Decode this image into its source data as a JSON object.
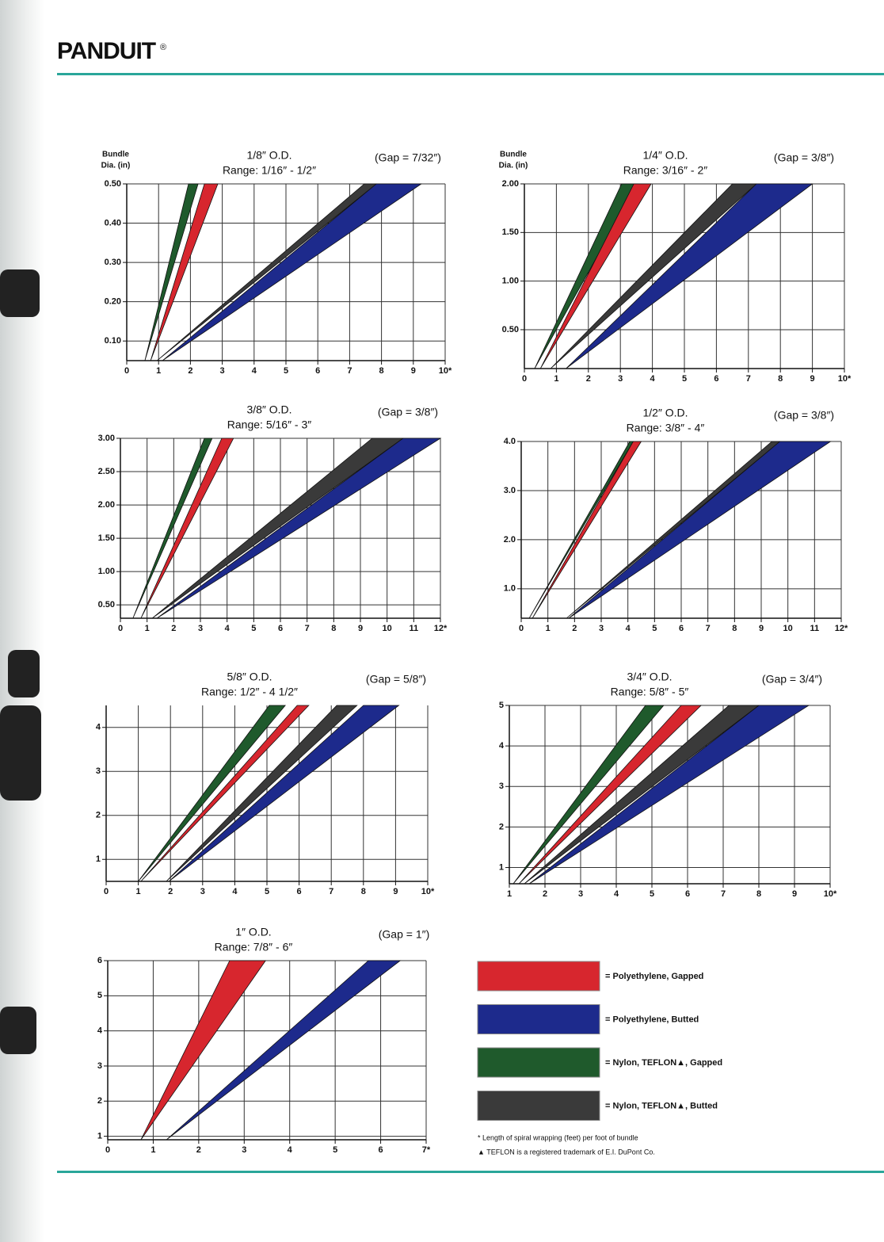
{
  "header": {
    "logo": "PANDUIT",
    "mark": "®"
  },
  "chart_data": [
    {
      "type": "band",
      "title": "1/8″ O.D.",
      "range": "Range: 1/16″ - 1/2″",
      "gap": "(Gap = 7/32″)",
      "ylabel": [
        "Bundle",
        "Dia. (in)"
      ],
      "xlim": [
        0,
        10
      ],
      "ylim": [
        0.05,
        0.5
      ],
      "grid": true,
      "xticks": [
        0,
        1,
        2,
        3,
        4,
        5,
        6,
        7,
        8,
        9,
        {
          "value": 10,
          "label": "10*"
        }
      ],
      "yticks": [
        {
          "value": 0.1,
          "label": "0.10"
        },
        {
          "value": 0.2,
          "label": "0.20"
        },
        {
          "value": 0.3,
          "label": "0.30"
        },
        {
          "value": 0.4,
          "label": "0.40"
        },
        {
          "value": 0.5,
          "label": "0.50"
        }
      ],
      "series": [
        {
          "color": "#1f5a2c",
          "x_bottom": 0.57,
          "x_top": [
            1.94,
            2.24
          ]
        },
        {
          "color": "#d7262e",
          "x_bottom": 0.75,
          "x_top": [
            2.44,
            2.86
          ]
        },
        {
          "color": "#3a3a3a",
          "x_bottom": 0.95,
          "x_top": [
            7.46,
            7.84
          ]
        },
        {
          "color": "#1d2a8c",
          "x_bottom": 1.12,
          "x_top": [
            7.84,
            9.25
          ]
        }
      ]
    },
    {
      "type": "band",
      "title": "1/4″ O.D.",
      "range": "Range: 3/16″ - 2″",
      "gap": "(Gap = 3/8″)",
      "ylabel": [
        "Bundle",
        "Dia. (in)"
      ],
      "xlim": [
        0,
        10
      ],
      "ylim": [
        0.1,
        2.0
      ],
      "grid": true,
      "xticks": [
        0,
        1,
        2,
        3,
        4,
        5,
        6,
        7,
        8,
        9,
        {
          "value": 10,
          "label": "10*"
        }
      ],
      "yticks": [
        {
          "value": 0.5,
          "label": "0.50"
        },
        {
          "value": 1,
          "label": "1.00"
        },
        {
          "value": 1.5,
          "label": "1.50"
        },
        {
          "value": 2,
          "label": "2.00"
        }
      ],
      "series": [
        {
          "color": "#1f5a2c",
          "x_bottom": 0.32,
          "x_top": [
            3.04,
            3.54
          ]
        },
        {
          "color": "#d7262e",
          "x_bottom": 0.5,
          "x_top": [
            3.42,
            3.96
          ]
        },
        {
          "color": "#3a3a3a",
          "x_bottom": 0.82,
          "x_top": [
            6.5,
            7.25
          ]
        },
        {
          "color": "#1d2a8c",
          "x_bottom": 1.3,
          "x_top": [
            7.25,
            9.0
          ]
        }
      ]
    },
    {
      "type": "band",
      "title": "3/8″ O.D.",
      "range": "Range: 5/16″ - 3″",
      "gap": "(Gap = 3/8″)",
      "xlim": [
        0,
        12
      ],
      "ylim": [
        0.3,
        3.0
      ],
      "grid": true,
      "xticks": [
        0,
        1,
        2,
        3,
        4,
        5,
        6,
        7,
        8,
        9,
        10,
        11,
        {
          "value": 12,
          "label": "12*"
        }
      ],
      "yticks": [
        {
          "value": 0.5,
          "label": "0.50"
        },
        {
          "value": 1,
          "label": "1.00"
        },
        {
          "value": 1.5,
          "label": "1.50"
        },
        {
          "value": 2,
          "label": "2.00"
        },
        {
          "value": 2.5,
          "label": "2.50"
        },
        {
          "value": 3,
          "label": "3.00"
        }
      ],
      "series": [
        {
          "color": "#1f5a2c",
          "x_bottom": 0.47,
          "x_top": [
            3.15,
            3.44
          ]
        },
        {
          "color": "#d7262e",
          "x_bottom": 0.77,
          "x_top": [
            3.8,
            4.24
          ]
        },
        {
          "color": "#3a3a3a",
          "x_bottom": 1.19,
          "x_top": [
            9.44,
            10.6
          ]
        },
        {
          "color": "#1d2a8c",
          "x_bottom": 1.37,
          "x_top": [
            10.6,
            12.0
          ]
        }
      ]
    },
    {
      "type": "band",
      "title": "1/2″ O.D.",
      "range": "Range: 3/8″ - 4″",
      "gap": "(Gap = 3/8″)",
      "xlim": [
        0,
        12
      ],
      "ylim": [
        0.4,
        4.0
      ],
      "grid": true,
      "xticks": [
        0,
        1,
        2,
        3,
        4,
        5,
        6,
        7,
        8,
        9,
        10,
        11,
        {
          "value": 12,
          "label": "12*"
        }
      ],
      "yticks": [
        {
          "value": 1,
          "label": "1.0"
        },
        {
          "value": 2,
          "label": "2.0"
        },
        {
          "value": 3,
          "label": "3.0"
        },
        {
          "value": 4,
          "label": "4.0"
        }
      ],
      "series": [
        {
          "color": "#1f5a2c",
          "x_bottom": 0.3,
          "x_top": [
            4.07,
            4.2
          ]
        },
        {
          "color": "#d7262e",
          "x_bottom": 0.42,
          "x_top": [
            4.2,
            4.5
          ]
        },
        {
          "color": "#3a3a3a",
          "x_bottom": 1.7,
          "x_top": [
            9.4,
            9.7
          ]
        },
        {
          "color": "#1d2a8c",
          "x_bottom": 1.78,
          "x_top": [
            9.7,
            11.6
          ]
        }
      ]
    },
    {
      "type": "band",
      "title": "5/8″ O.D.",
      "range": "Range: 1/2″ - 4 1/2″",
      "gap": "(Gap = 5/8″)",
      "xlim": [
        0,
        10
      ],
      "ylim": [
        0.5,
        4.5
      ],
      "grid": true,
      "xticks": [
        0,
        1,
        2,
        3,
        4,
        5,
        6,
        7,
        8,
        9,
        {
          "value": 10,
          "label": "10*"
        }
      ],
      "yticks": [
        1,
        2,
        3,
        4
      ],
      "series": [
        {
          "color": "#1f5a2c",
          "x_bottom": 1.0,
          "x_top": [
            5.07,
            5.57
          ]
        },
        {
          "color": "#d7262e",
          "x_bottom": 1.08,
          "x_top": [
            5.94,
            6.3
          ]
        },
        {
          "color": "#3a3a3a",
          "x_bottom": 1.87,
          "x_top": [
            7.17,
            7.8
          ]
        },
        {
          "color": "#1d2a8c",
          "x_bottom": 1.95,
          "x_top": [
            8.0,
            9.1
          ]
        }
      ]
    },
    {
      "type": "band",
      "title": "3/4″ O.D.",
      "range": "Range: 5/8″ - 5″",
      "gap": "(Gap = 3/4″)",
      "xlim": [
        1,
        10
      ],
      "ylim": [
        0.6,
        5
      ],
      "grid": true,
      "xticks": [
        1,
        2,
        3,
        4,
        5,
        6,
        7,
        8,
        9,
        {
          "value": 10,
          "label": "10*"
        }
      ],
      "yticks": [
        1,
        2,
        3,
        4,
        5
      ],
      "series": [
        {
          "color": "#1f5a2c",
          "x_bottom": 1.11,
          "x_top": [
            4.82,
            5.33
          ]
        },
        {
          "color": "#d7262e",
          "x_bottom": 1.27,
          "x_top": [
            5.82,
            6.38
          ]
        },
        {
          "color": "#3a3a3a",
          "x_bottom": 1.42,
          "x_top": [
            7.16,
            8.0
          ]
        },
        {
          "color": "#1d2a8c",
          "x_bottom": 1.56,
          "x_top": [
            8.0,
            9.4
          ]
        }
      ]
    },
    {
      "type": "band",
      "title": "1″ O.D.",
      "range": "Range: 7/8″ - 6″",
      "gap": "(Gap = 1″)",
      "xlim": [
        0,
        7
      ],
      "ylim": [
        0.9,
        6
      ],
      "grid": true,
      "xticks": [
        0,
        1,
        2,
        3,
        4,
        5,
        6,
        {
          "value": 7,
          "label": "7*"
        }
      ],
      "yticks": [
        1,
        2,
        3,
        4,
        5,
        6
      ],
      "series": [
        {
          "color": "#d7262e",
          "x_bottom": 0.73,
          "x_top": [
            2.68,
            3.47
          ]
        },
        {
          "color": "#1d2a8c",
          "x_bottom": 1.29,
          "x_top": [
            5.73,
            6.43
          ]
        }
      ]
    }
  ],
  "legend": {
    "items": [
      {
        "label": "= Polyethylene, Gapped",
        "color": "#d7262e"
      },
      {
        "label": "= Polyethylene, Butted",
        "color": "#1d2a8c"
      },
      {
        "label": "= Nylon, TEFLON▲, Gapped",
        "color": "#1f5a2c"
      },
      {
        "label": "= Nylon, TEFLON▲, Butted",
        "color": "#3a3a3a"
      }
    ],
    "notes": [
      "* Length of spiral wrapping (feet) per foot of bundle",
      "▲ TEFLON is a registered trademark of E.I. DuPont Co."
    ]
  }
}
